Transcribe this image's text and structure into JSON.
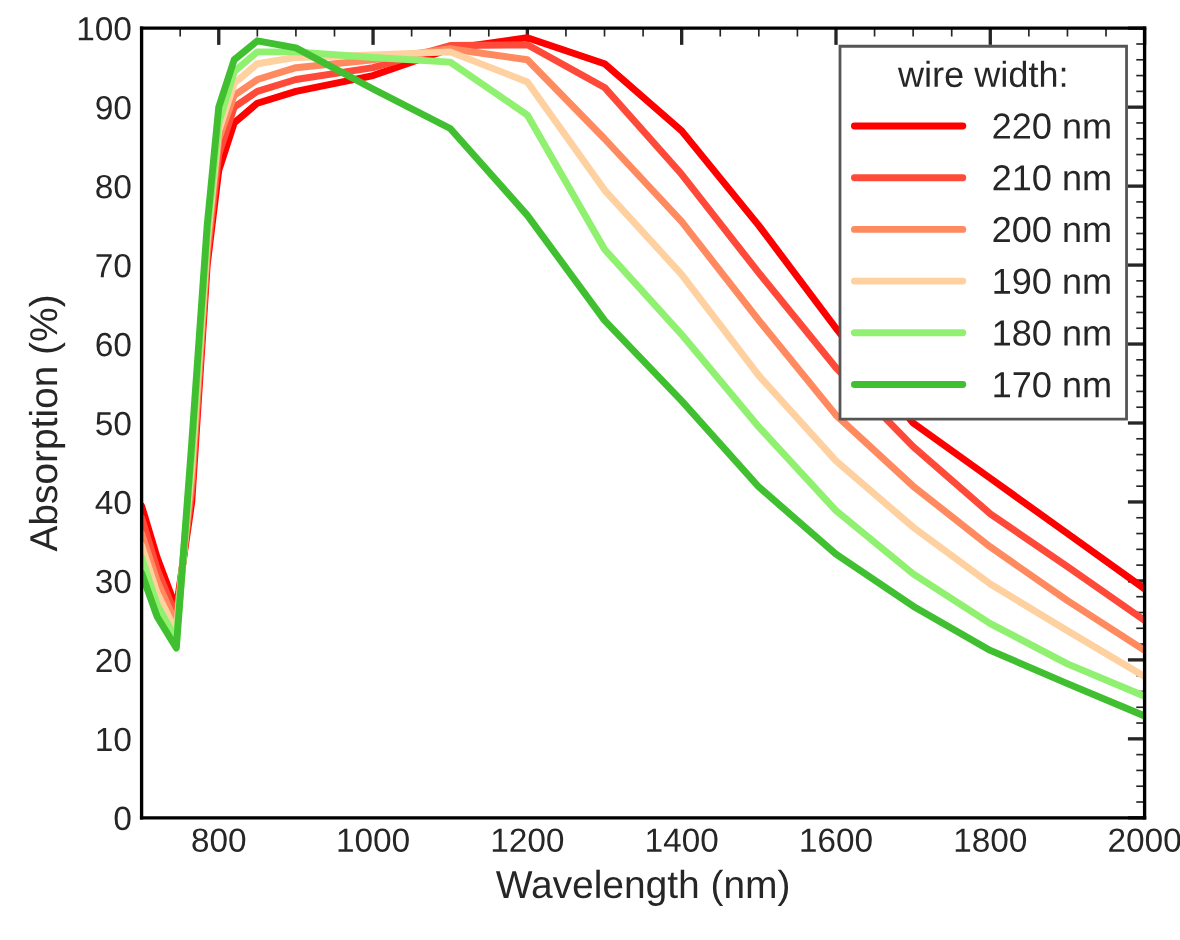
{
  "chart_data": {
    "type": "line",
    "xlabel": "Wavelength (nm)",
    "ylabel": "Absorption (%)",
    "legend_title": "wire width:",
    "legend": "top right",
    "grid": false,
    "marker": "none",
    "line_style": "solid",
    "x": [
      700,
      720,
      745,
      765,
      785,
      800,
      820,
      850,
      900,
      1000,
      1100,
      1200,
      1300,
      1400,
      1500,
      1600,
      1700,
      1800,
      1900,
      2000
    ],
    "xlim": [
      700,
      2000
    ],
    "xticks": [
      800,
      1000,
      1200,
      1400,
      1600,
      1800,
      2000
    ],
    "ylim": [
      0,
      100
    ],
    "yticks": [
      0,
      10,
      20,
      30,
      40,
      50,
      60,
      70,
      80,
      90,
      100
    ],
    "series": [
      {
        "name": "220 nm",
        "color": "#ff0000",
        "values": [
          39.5,
          33,
          26.5,
          40,
          70,
          82,
          88,
          90.5,
          92,
          94,
          97.4,
          98.8,
          95.5,
          87,
          75,
          62,
          50,
          43,
          36,
          29
        ]
      },
      {
        "name": "210 nm",
        "color": "#ff4a3a",
        "values": [
          38,
          31.5,
          25.5,
          41.5,
          71,
          84,
          90,
          92,
          93.5,
          95,
          97.8,
          97.9,
          92.5,
          81.5,
          69,
          57,
          47,
          38.5,
          31.8,
          25
        ]
      },
      {
        "name": "200 nm",
        "color": "#ff8a60",
        "values": [
          36,
          30,
          24.5,
          43,
          72,
          86,
          91.5,
          93.5,
          95,
          96,
          97.4,
          96,
          86,
          75.5,
          63,
          51,
          42,
          34.3,
          27.5,
          21.2
        ]
      },
      {
        "name": "190 nm",
        "color": "#ffd0a0",
        "values": [
          34.5,
          28.5,
          23.5,
          44.5,
          73,
          87,
          93,
          95.5,
          96.3,
          96.6,
          97,
          93.2,
          79.5,
          68.8,
          56,
          45.2,
          36.8,
          29.6,
          23.7,
          17.9
        ]
      },
      {
        "name": "180 nm",
        "color": "#90f070",
        "values": [
          33,
          27,
          22.5,
          46,
          74,
          88,
          94.5,
          97,
          97,
          96.3,
          95.7,
          89,
          72,
          61.2,
          49.5,
          38.9,
          30.9,
          24.6,
          19.5,
          15.4
        ]
      },
      {
        "name": "170 nm",
        "color": "#40c030",
        "values": [
          31,
          25.5,
          21.5,
          47.5,
          75,
          90,
          96,
          98.4,
          97.5,
          92.3,
          87.3,
          76.3,
          63,
          52.8,
          41.9,
          33.4,
          26.8,
          21.2,
          17,
          12.9
        ]
      }
    ]
  }
}
